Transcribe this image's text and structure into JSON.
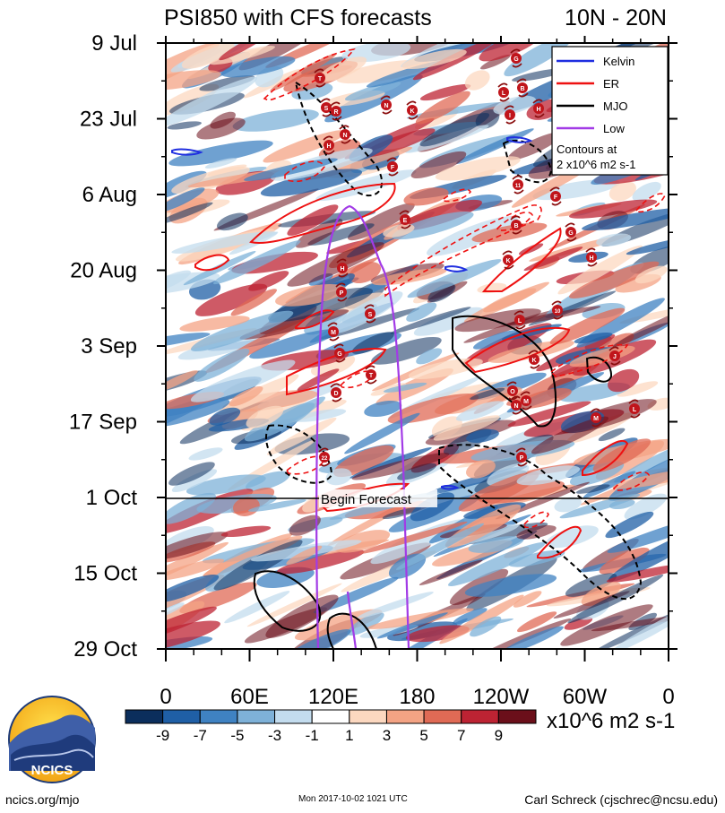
{
  "chart_data": {
    "type": "heatmap",
    "title": "PSI850 with CFS forecasts",
    "region": "10N - 20N",
    "yticks": [
      "9 Jul",
      "23 Jul",
      "6 Aug",
      "20 Aug",
      "3 Sep",
      "17 Sep",
      "1 Oct",
      "15 Oct",
      "29 Oct"
    ],
    "xticks": [
      "0",
      "60E",
      "120E",
      "180",
      "120W",
      "60W",
      "0"
    ],
    "x_range_deg": [
      0,
      360
    ],
    "y_range_days": [
      0,
      112
    ],
    "forecast_start_day": 84,
    "forecast_label": "Begin Forecast",
    "colorbar": {
      "levels": [
        -9,
        -7,
        -5,
        -3,
        -1,
        1,
        3,
        5,
        7,
        9
      ],
      "colors": [
        "#0b2e5c",
        "#1f5fa6",
        "#3f82c2",
        "#7eb1d8",
        "#c3dcee",
        "#ffffff",
        "#fcd8c0",
        "#f4a384",
        "#e06a55",
        "#bd2333",
        "#6b0f1a"
      ],
      "units": "x10^6 m2 s-1"
    },
    "legend": {
      "items": [
        {
          "name": "Kelvin",
          "color": "#1f2ee0"
        },
        {
          "name": "ER",
          "color": "#ee1111"
        },
        {
          "name": "MJO",
          "color": "#000000"
        },
        {
          "name": "Low",
          "color": "#a23be6"
        }
      ],
      "note_line1": "Contours at",
      "note_line2": "2 x10^6 m2 s-1"
    },
    "storm_labels": [
      "T",
      "S",
      "R",
      "N",
      "H",
      "N",
      "K",
      "F",
      "G",
      "B",
      "L",
      "I",
      "H",
      "11",
      "F",
      "E",
      "B",
      "G",
      "H",
      "K",
      "H",
      "P",
      "S",
      "L",
      "10",
      "M",
      "K",
      "J",
      "G",
      "T",
      "D",
      "O",
      "N",
      "M",
      "L",
      "M",
      "P",
      "22"
    ]
  },
  "footer": {
    "left": "ncics.org/mjo",
    "center": "Mon 2017-10-02 1021 UTC",
    "right": "Carl Schreck (cjschrec@ncsu.edu)"
  },
  "logo": {
    "text": "NCICS"
  }
}
